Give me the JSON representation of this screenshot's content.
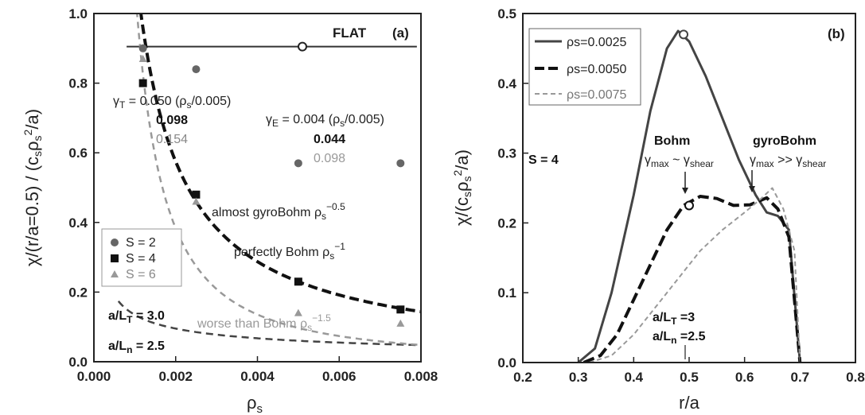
{
  "chart_data": [
    {
      "panel": "(a)",
      "type": "scatter",
      "xlabel": "ρs",
      "ylabel": "χ/(r/a=0.5) / (csρs²/a)",
      "xlim": [
        0.0,
        0.008
      ],
      "ylim": [
        0.0,
        1.0
      ],
      "xticks": [
        "0.000",
        "0.002",
        "0.004",
        "0.006",
        "0.008"
      ],
      "yticks": [
        "0.0",
        "0.2",
        "0.4",
        "0.6",
        "0.8",
        "1.0"
      ],
      "grid": false,
      "legend_position": "bottom-left",
      "series": [
        {
          "name": "S = 2",
          "marker": "circle",
          "color": "#666666",
          "x": [
            0.0012,
            0.0025,
            0.005,
            0.0075
          ],
          "y": [
            0.9,
            0.84,
            0.57,
            0.57
          ]
        },
        {
          "name": "S = 4",
          "marker": "square",
          "color": "#111111",
          "x": [
            0.0012,
            0.0025,
            0.005,
            0.0075
          ],
          "y": [
            0.8,
            0.48,
            0.23,
            0.15
          ]
        },
        {
          "name": "S = 6",
          "marker": "triangle",
          "color": "#999999",
          "x": [
            0.0012,
            0.0025,
            0.005,
            0.0075
          ],
          "y": [
            0.87,
            0.46,
            0.14,
            0.11
          ]
        }
      ],
      "fits": [
        {
          "kind": "flat",
          "style": "solid",
          "y": 0.905
        },
        {
          "kind": "almost gyroBohm",
          "style": "dashed",
          "exponent": -0.5,
          "coef": 0.00426
        },
        {
          "kind": "perfectly Bohm",
          "style": "dashed-heavy",
          "exponent": -1,
          "coef": 0.00115
        },
        {
          "kind": "worse than Bohm",
          "style": "dashed-light",
          "exponent": -1.5,
          "coef": 3.43e-05
        }
      ],
      "flat_marker": {
        "x": 0.0051,
        "y": 0.905
      },
      "annotations": {
        "flat": "FLAT",
        "panel": "(a)",
        "gammaT": "γT = 0.050 (ρs/0.005)",
        "gammaT_2": "0.098",
        "gammaT_3": "0.154",
        "gammaE": "γE = 0.004 (ρs/0.005)",
        "gammaE_2": "0.044",
        "gammaE_3": "0.098",
        "almost": "almost gyroBohm ρs−0.5",
        "perfect": "perfectly Bohm ρs−1",
        "worse": "worse than Bohm ρs−1.5",
        "aLT": "a/LT = 3.0",
        "aLn": "a/Ln = 2.5"
      }
    },
    {
      "panel": "(b)",
      "type": "line",
      "xlabel": "r/a",
      "ylabel": "χ/(csρs²/a)",
      "xlim": [
        0.2,
        0.8
      ],
      "ylim": [
        0.0,
        0.5
      ],
      "xticks": [
        "0.2",
        "0.3",
        "0.4",
        "0.5",
        "0.6",
        "0.7",
        "0.8"
      ],
      "yticks": [
        "0.0",
        "0.1",
        "0.2",
        "0.3",
        "0.4",
        "0.5"
      ],
      "grid": false,
      "legend_position": "top-left",
      "series": [
        {
          "name": "ρs=0.0025",
          "style": "solid",
          "color": "#444444",
          "x": [
            0.3,
            0.33,
            0.36,
            0.4,
            0.43,
            0.46,
            0.48,
            0.5,
            0.53,
            0.56,
            0.59,
            0.62,
            0.64,
            0.66,
            0.68,
            0.7
          ],
          "y": [
            0.0,
            0.02,
            0.1,
            0.24,
            0.36,
            0.45,
            0.475,
            0.46,
            0.41,
            0.35,
            0.29,
            0.24,
            0.215,
            0.21,
            0.19,
            0.0
          ]
        },
        {
          "name": "ρs=0.0050",
          "style": "dashed",
          "color": "#111111",
          "x": [
            0.31,
            0.34,
            0.37,
            0.4,
            0.43,
            0.46,
            0.49,
            0.52,
            0.55,
            0.58,
            0.61,
            0.64,
            0.66,
            0.68,
            0.7
          ],
          "y": [
            0.0,
            0.01,
            0.04,
            0.09,
            0.14,
            0.19,
            0.225,
            0.238,
            0.235,
            0.225,
            0.226,
            0.236,
            0.22,
            0.18,
            0.0
          ]
        },
        {
          "name": "ρs=0.0075",
          "style": "dashed-light",
          "color": "#999999",
          "x": [
            0.32,
            0.36,
            0.4,
            0.44,
            0.48,
            0.52,
            0.56,
            0.6,
            0.63,
            0.65,
            0.67,
            0.69,
            0.7
          ],
          "y": [
            0.0,
            0.01,
            0.04,
            0.08,
            0.12,
            0.16,
            0.19,
            0.215,
            0.235,
            0.25,
            0.22,
            0.16,
            0.0
          ]
        }
      ],
      "annotations": {
        "panel": "(b)",
        "S": "S = 4",
        "bohm": "Bohm",
        "bohm_sub": "γmax ~ γshear",
        "gyro": "gyroBohm",
        "gyro_sub": "γmax >> γshear",
        "aLT": "a/LT =3",
        "aLn": "a/Ln =2.5"
      }
    }
  ]
}
